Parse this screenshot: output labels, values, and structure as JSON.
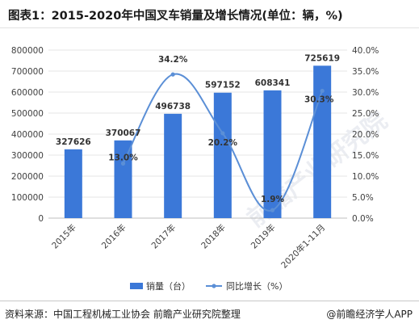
{
  "title": "图表1：2015-2020年中国叉车销量及增长情况(单位：辆，%)",
  "source": "资料来源：中国工程机械工业协会 前瞻产业研究院整理",
  "credit": "@前瞻经济学人APP",
  "watermark": "前瞻产业研究院",
  "colors": {
    "bar": "#3b78d8",
    "line": "#5b8fd6",
    "grid": "#e6e6e6"
  },
  "chart_data": {
    "type": "bar",
    "categories": [
      "2015年",
      "2016年",
      "2017年",
      "2018年",
      "2019年",
      "2020年1-11月"
    ],
    "series": [
      {
        "name": "销量（台）",
        "type": "bar",
        "axis": "left",
        "values": [
          327626,
          370067,
          496738,
          597152,
          608341,
          725619
        ]
      },
      {
        "name": "同比增长（%）",
        "type": "line",
        "axis": "right",
        "values": [
          null,
          13.0,
          34.2,
          20.2,
          1.9,
          30.3
        ],
        "value_labels": [
          "",
          "13.0%",
          "34.2%",
          "20.2%",
          "1.9%",
          "30.3%"
        ]
      }
    ],
    "y_left": {
      "min": 0,
      "max": 800000,
      "step": 100000,
      "ticks": [
        "0",
        "100000",
        "200000",
        "300000",
        "400000",
        "500000",
        "600000",
        "700000",
        "800000"
      ]
    },
    "y_right": {
      "min": 0,
      "max": 40,
      "step": 5,
      "ticks": [
        "0.0%",
        "5.0%",
        "10.0%",
        "15.0%",
        "20.0%",
        "25.0%",
        "30.0%",
        "35.0%",
        "40.0%"
      ]
    },
    "grid": true,
    "legend_position": "bottom"
  }
}
